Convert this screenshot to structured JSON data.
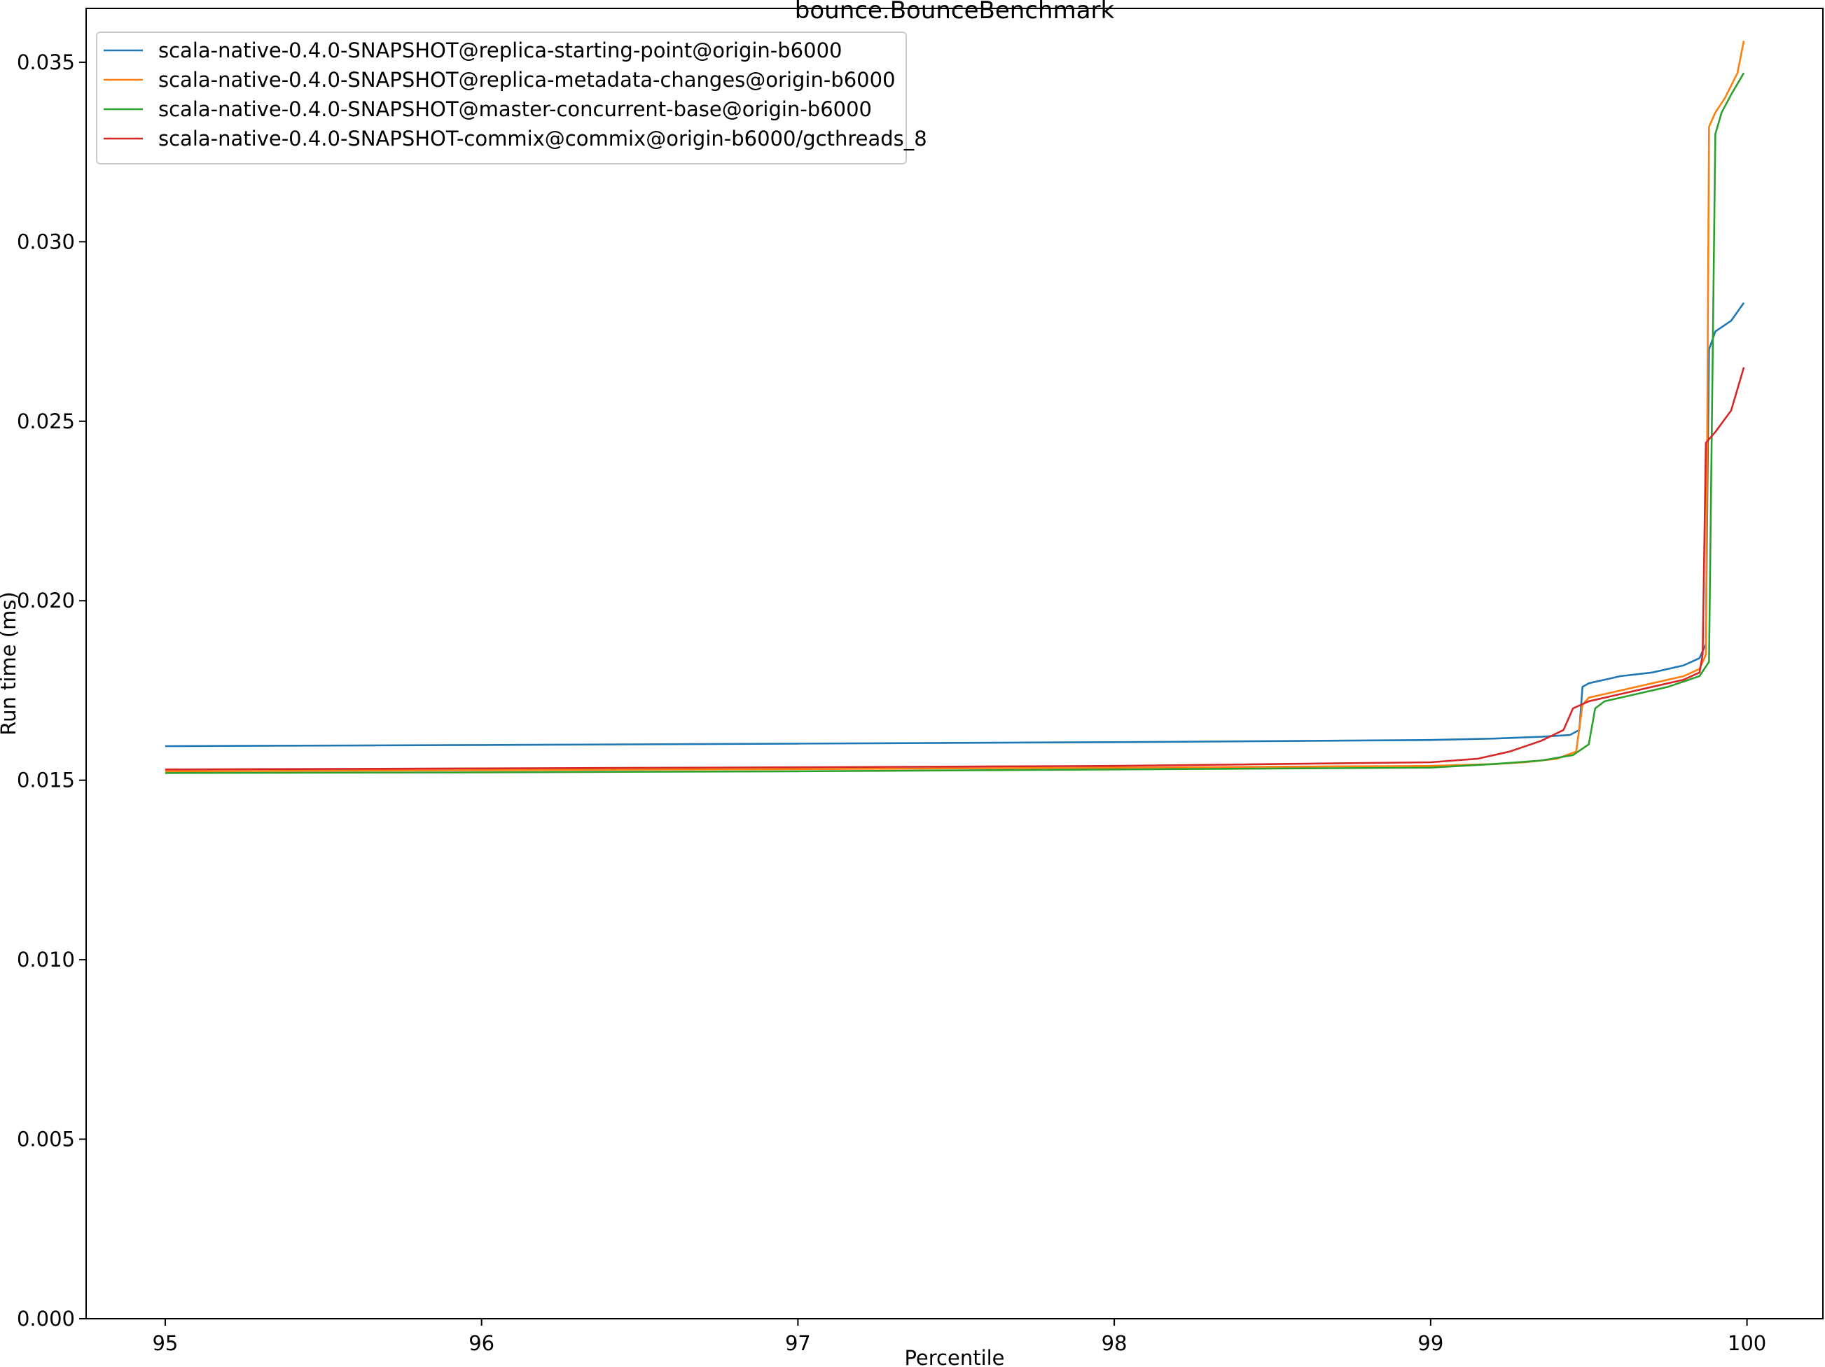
{
  "chart_data": {
    "type": "line",
    "title": "bounce.BounceBenchmark",
    "xlabel": "Percentile",
    "ylabel": "Run time (ms)",
    "xlim": [
      94.75,
      100.24
    ],
    "ylim": [
      0.0,
      0.0365
    ],
    "xticks": [
      95,
      96,
      97,
      98,
      99,
      100
    ],
    "xtick_labels": [
      "95",
      "96",
      "97",
      "98",
      "99",
      "100"
    ],
    "yticks": [
      0.0,
      0.005,
      0.01,
      0.015,
      0.02,
      0.025,
      0.03,
      0.035
    ],
    "ytick_labels": [
      "0.000",
      "0.005",
      "0.010",
      "0.015",
      "0.020",
      "0.025",
      "0.030",
      "0.035"
    ],
    "grid": false,
    "legend_position": "top-left",
    "series": [
      {
        "name": "scala-native-0.4.0-SNAPSHOT@replica-starting-point@origin-b6000",
        "color": "#1f77b4",
        "x": [
          95,
          96,
          97,
          98,
          98.5,
          99,
          99.2,
          99.35,
          99.44,
          99.47,
          99.48,
          99.5,
          99.55,
          99.6,
          99.7,
          99.8,
          99.85,
          99.87,
          99.875,
          99.88,
          99.9,
          99.95,
          99.99
        ],
        "y": [
          0.01595,
          0.01598,
          0.01602,
          0.01606,
          0.01609,
          0.01612,
          0.01616,
          0.01621,
          0.01626,
          0.0164,
          0.0176,
          0.0177,
          0.0178,
          0.0179,
          0.018,
          0.0182,
          0.0184,
          0.0188,
          0.023,
          0.027,
          0.0275,
          0.0278,
          0.0283
        ]
      },
      {
        "name": "scala-native-0.4.0-SNAPSHOT@replica-metadata-changes@origin-b6000",
        "color": "#ff7f0e",
        "x": [
          95,
          96,
          97,
          98,
          99,
          99.2,
          99.3,
          99.4,
          99.46,
          99.48,
          99.5,
          99.6,
          99.7,
          99.8,
          99.85,
          99.87,
          99.88,
          99.9,
          99.93,
          99.97,
          99.99
        ],
        "y": [
          0.01525,
          0.01528,
          0.01531,
          0.01535,
          0.0154,
          0.01545,
          0.0155,
          0.0156,
          0.0158,
          0.0171,
          0.0173,
          0.0175,
          0.0177,
          0.0179,
          0.0181,
          0.0185,
          0.0332,
          0.0336,
          0.034,
          0.0347,
          0.0356
        ]
      },
      {
        "name": "scala-native-0.4.0-SNAPSHOT@master-concurrent-base@origin-b6000",
        "color": "#2ca02c",
        "x": [
          95,
          96,
          97,
          98,
          99,
          99.2,
          99.35,
          99.45,
          99.5,
          99.52,
          99.55,
          99.65,
          99.75,
          99.85,
          99.88,
          99.9,
          99.92,
          99.95,
          99.99
        ],
        "y": [
          0.0152,
          0.01522,
          0.01525,
          0.0153,
          0.01535,
          0.01545,
          0.01555,
          0.0157,
          0.016,
          0.017,
          0.0172,
          0.0174,
          0.0176,
          0.0179,
          0.0183,
          0.033,
          0.0336,
          0.0341,
          0.0347
        ]
      },
      {
        "name": "scala-native-0.4.0-SNAPSHOT-commix@commix@origin-b6000/gcthreads_8",
        "color": "#d62728",
        "x": [
          95,
          96,
          97,
          98,
          99,
          99.15,
          99.25,
          99.35,
          99.42,
          99.45,
          99.5,
          99.6,
          99.7,
          99.8,
          99.85,
          99.86,
          99.87,
          99.9,
          99.95,
          99.99
        ],
        "y": [
          0.0153,
          0.01533,
          0.01536,
          0.0154,
          0.0155,
          0.0156,
          0.0158,
          0.0161,
          0.0164,
          0.017,
          0.0172,
          0.0174,
          0.0176,
          0.0178,
          0.018,
          0.0185,
          0.0244,
          0.0247,
          0.0253,
          0.0265
        ]
      }
    ]
  }
}
